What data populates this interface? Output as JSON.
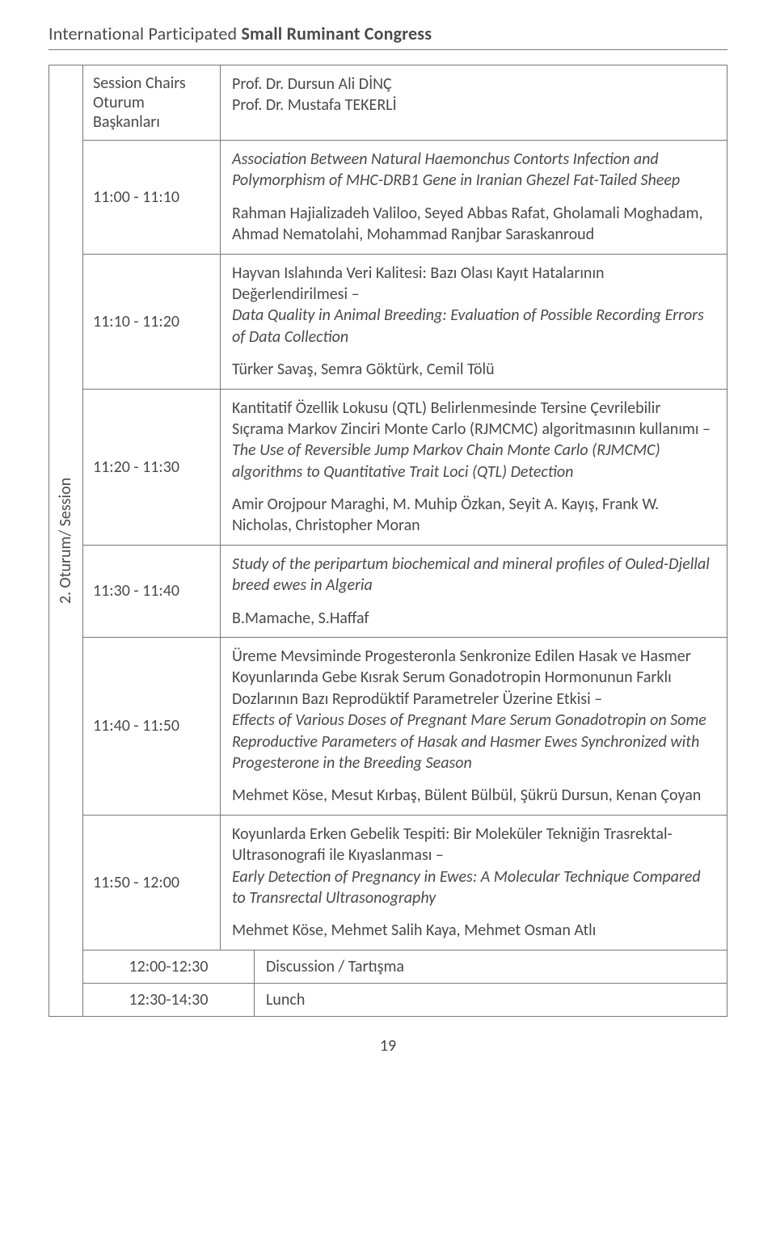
{
  "header": {
    "prefix": "International Participated ",
    "bold": "Small Ruminant Congress"
  },
  "side_label": "2. Oturum/ Session",
  "rows": [
    {
      "time_line1": "Session Chairs",
      "time_line2": "Oturum Başkanları",
      "desc_line1": "Prof. Dr. Dursun Ali DİNÇ",
      "desc_line2": "Prof. Dr. Mustafa TEKERLİ"
    },
    {
      "time": "11:00 - 11:10",
      "title_italic": "Association Between Natural Haemonchus Contorts Infection and Polymorphism of MHC-DRB1 Gene in Iranian Ghezel Fat-Tailed Sheep",
      "authors": "Rahman Hajializadeh Valiloo, Seyed Abbas Rafat, Gholamali Moghadam, Ahmad Nematolahi, Mohammad Ranjbar Saraskanroud"
    },
    {
      "time": "11:10 - 11:20",
      "title_plain": "Hayvan Islahında Veri Kalitesi: Bazı Olası Kayıt Hatalarının Değerlendirilmesi –",
      "title_italic": "Data Quality in Animal Breeding: Evaluation of Possible Recording Errors of Data Collection",
      "authors": "Türker Savaş, Semra Göktürk, Cemil Tölü"
    },
    {
      "time": "11:20 - 11:30",
      "title_plain": "Kantitatif Özellik Lokusu (QTL) Belirlenmesinde Tersine Çevrilebilir Sıçrama Markov Zinciri Monte Carlo (RJMCMC) algoritmasının kullanımı –",
      "title_italic": "The Use of Reversible Jump Markov Chain Monte Carlo (RJMCMC) algorithms to Quantitative Trait Loci (QTL) Detection",
      "authors": "Amir Orojpour Maraghi, M. Muhip Özkan, Seyit A. Kayış, Frank W. Nicholas, Christopher Moran"
    },
    {
      "time": "11:30 - 11:40",
      "title_italic": "Study of the peripartum   biochemical and mineral profiles of Ouled-Djellal breed ewes in Algeria",
      "authors": "B.Mamache, S.Haffaf"
    },
    {
      "time": "11:40 - 11:50",
      "title_plain": "Üreme Mevsiminde Progesteronla Senkronize Edilen Hasak ve Hasmer Koyunlarında Gebe Kısrak Serum Gonadotropin Hormonunun Farklı Dozlarının Bazı Reprodüktif Parametreler Üzerine Etkisi –",
      "title_italic": "Effects of Various Doses of Pregnant Mare Serum Gonadotropin on Some Reproductive Parameters of Hasak and Hasmer Ewes Synchronized with Progesterone in the Breeding Season",
      "authors": "Mehmet Köse, Mesut Kırbaş, Bülent Bülbül, Şükrü Dursun, Kenan Çoyan"
    },
    {
      "time": "11:50 - 12:00",
      "title_plain": "Koyunlarda Erken Gebelik Tespiti: Bir Moleküler Tekniğin Trasrektal-Ultrasonografi ile Kıyaslanması –",
      "title_italic": "Early Detection of Pregnancy in Ewes: A Molecular Technique Compared to Transrectal Ultrasonography",
      "authors": "Mehmet Köse, Mehmet Salih Kaya, Mehmet Osman Atlı"
    }
  ],
  "bottom_rows": [
    {
      "time": "12:00-12:30",
      "desc": "Discussion / Tartışma"
    },
    {
      "time": "12:30-14:30",
      "desc": "Lunch"
    }
  ],
  "page_number": "19"
}
